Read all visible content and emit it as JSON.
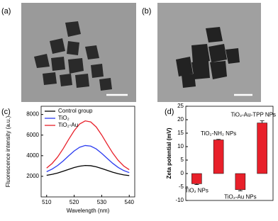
{
  "panel_labels": [
    "(a)",
    "(b)",
    "(c)",
    "(d)"
  ],
  "chart_data": [
    {
      "type": "line",
      "xlabel": "Wavelength (nm)",
      "ylabel": "Fluorescence intensity (a.u.)",
      "x": [
        510,
        512,
        514,
        516,
        518,
        520,
        522,
        524,
        526,
        528,
        530,
        532,
        534,
        536,
        538,
        540
      ],
      "xlim": [
        508,
        542
      ],
      "xticks": [
        510,
        520,
        530,
        540
      ],
      "ylim": [
        0,
        8800
      ],
      "yticks": [
        2000,
        4000,
        6000,
        8000
      ],
      "legend": "upper left",
      "grid": false,
      "series": [
        {
          "name": "Control group",
          "color": "#000000",
          "values": [
            2100,
            2190,
            2320,
            2490,
            2670,
            2850,
            2980,
            3050,
            3030,
            2920,
            2760,
            2580,
            2400,
            2250,
            2140,
            2070
          ]
        },
        {
          "name": "TiO₂",
          "color": "#2b3cf0",
          "values": [
            2450,
            2700,
            3050,
            3490,
            3990,
            4460,
            4820,
            4990,
            4930,
            4660,
            4230,
            3740,
            3260,
            2860,
            2560,
            2360
          ]
        },
        {
          "name": "TiO₂-Au",
          "color": "#e8202a",
          "values": [
            2800,
            3250,
            3880,
            4680,
            5580,
            6430,
            7080,
            7380,
            7280,
            6790,
            6010,
            5120,
            4260,
            3540,
            3000,
            2640
          ]
        }
      ]
    },
    {
      "type": "bar",
      "ylabel": "Zeta potential (mV)",
      "categories": [
        "TiO₂ NPs",
        "TiO₂-NH₂ NPs",
        "TiO₂-Au NPs",
        "TiO₂-Au-TPP NPs"
      ],
      "values": [
        -3.8,
        12.5,
        -6,
        18.8
      ],
      "errors": [
        0.3,
        0.2,
        0.4,
        0.8
      ],
      "color": "#e8202a",
      "ylim": [
        -10,
        25
      ],
      "yticks": [
        -10,
        -5,
        0,
        5,
        10,
        15,
        20,
        25
      ],
      "grid": false
    }
  ]
}
